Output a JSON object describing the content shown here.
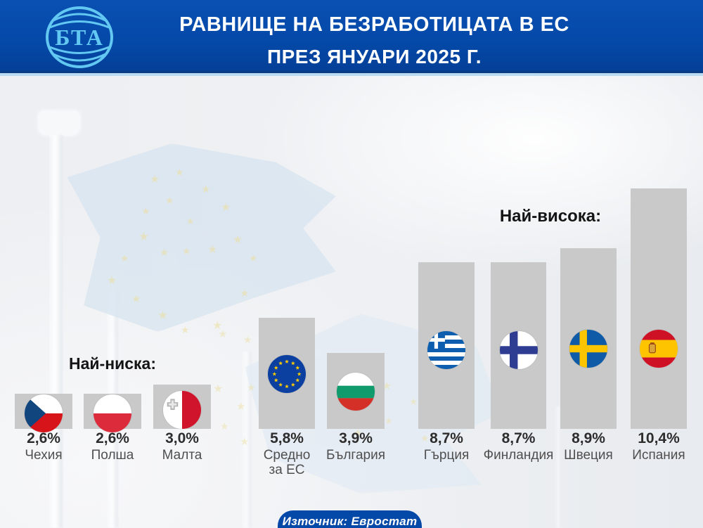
{
  "header": {
    "logo_text": "БТА",
    "title_line1": "РАВНИЩЕ НА БЕЗРАБОТИЦАТА В ЕС",
    "title_line2": "ПРЕЗ ЯНУАРИ 2025 Г."
  },
  "source": {
    "label": "Източник: Евростат"
  },
  "colors": {
    "header_blue": "#0449a8",
    "divider_light_blue": "#badaf2",
    "bar_gray": "#c9c9c9",
    "logo_light_blue": "#62c7f1",
    "value_text": "#2d2d2d",
    "country_text": "#4f4f4f"
  },
  "chart_data": {
    "type": "bar",
    "title": "РАВНИЩЕ НА БЕЗРАБОТИЦАТА В ЕС ПРЕЗ ЯНУАРИ 2025 Г.",
    "unit": "%",
    "source": "Евростат",
    "categories": [
      "Чехия",
      "Полша",
      "Малта",
      "Средно за ЕС",
      "България",
      "Гърция",
      "Финландия",
      "Швеция",
      "Испания"
    ],
    "values": [
      2.6,
      2.6,
      3.0,
      5.8,
      3.9,
      8.7,
      8.7,
      8.9,
      10.4
    ],
    "group_labels": {
      "lowest": "Най-ниска:",
      "highest": "Най-висока:"
    },
    "ylim": [
      0,
      11
    ],
    "grid": false,
    "legend_position": "none",
    "bars": [
      {
        "country": "Чехия",
        "value": 2.6,
        "display": "2,6%",
        "flag": "cz",
        "group": "lowest"
      },
      {
        "country": "Полша",
        "value": 2.6,
        "display": "2,6%",
        "flag": "pl",
        "group": "lowest"
      },
      {
        "country": "Малта",
        "value": 3.0,
        "display": "3,0%",
        "flag": "mt",
        "group": "lowest"
      },
      {
        "country": "Средно за ЕС",
        "label_lines": [
          "Средно",
          "за ЕС"
        ],
        "value": 5.8,
        "display": "5,8%",
        "flag": "eu",
        "group": "average"
      },
      {
        "country": "България",
        "value": 3.9,
        "display": "3,9%",
        "flag": "bg",
        "group": "average"
      },
      {
        "country": "Гърция",
        "value": 8.7,
        "display": "8,7%",
        "flag": "gr",
        "group": "highest"
      },
      {
        "country": "Финландия",
        "value": 8.7,
        "display": "8,7%",
        "flag": "fi",
        "group": "highest"
      },
      {
        "country": "Швеция",
        "value": 8.9,
        "display": "8,9%",
        "flag": "se",
        "group": "highest"
      },
      {
        "country": "Испания",
        "value": 10.4,
        "display": "10,4%",
        "flag": "es",
        "group": "highest"
      }
    ]
  }
}
